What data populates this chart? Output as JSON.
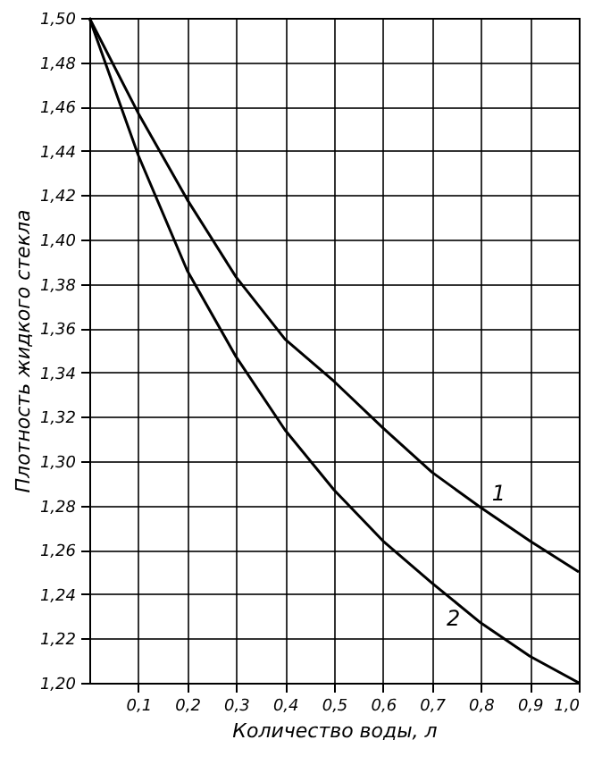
{
  "chart_data": {
    "type": "line",
    "xlabel": "Количество воды, л",
    "ylabel": "Плотность жидкого стекла",
    "x": [
      0,
      0.1,
      0.2,
      0.3,
      0.4,
      0.5,
      0.6,
      0.7,
      0.8,
      0.9,
      1.0
    ],
    "series": [
      {
        "name": "1",
        "color": "#000000",
        "values": [
          1.5,
          1.457,
          1.418,
          1.383,
          1.355,
          1.336,
          1.315,
          1.295,
          1.279,
          1.264,
          1.25
        ]
      },
      {
        "name": "2",
        "color": "#000000",
        "values": [
          1.5,
          1.438,
          1.386,
          1.347,
          1.314,
          1.287,
          1.264,
          1.245,
          1.227,
          1.212,
          1.2
        ]
      }
    ],
    "xlim": [
      0,
      1.0
    ],
    "xticks": [
      {
        "value": 0.1,
        "label": "0,1"
      },
      {
        "value": 0.2,
        "label": "0,2"
      },
      {
        "value": 0.3,
        "label": "0,3"
      },
      {
        "value": 0.4,
        "label": "0,4"
      },
      {
        "value": 0.5,
        "label": "0,5"
      },
      {
        "value": 0.6,
        "label": "0,6"
      },
      {
        "value": 0.7,
        "label": "0,7"
      },
      {
        "value": 0.8,
        "label": "0,8"
      },
      {
        "value": 0.9,
        "label": "0,9"
      },
      {
        "value": 1.0,
        "label": "1,0"
      }
    ],
    "ylim": [
      1.2,
      1.5
    ],
    "yticks": [
      {
        "value": 1.2,
        "label": "1,20"
      },
      {
        "value": 1.22,
        "label": "1,22"
      },
      {
        "value": 1.24,
        "label": "1,24"
      },
      {
        "value": 1.26,
        "label": "1,26"
      },
      {
        "value": 1.28,
        "label": "1,28"
      },
      {
        "value": 1.3,
        "label": "1,30"
      },
      {
        "value": 1.32,
        "label": "1,32"
      },
      {
        "value": 1.34,
        "label": "1,34"
      },
      {
        "value": 1.36,
        "label": "1,36"
      },
      {
        "value": 1.38,
        "label": "1,38"
      },
      {
        "value": 1.4,
        "label": "1,40"
      },
      {
        "value": 1.42,
        "label": "1,42"
      },
      {
        "value": 1.44,
        "label": "1,44"
      },
      {
        "value": 1.46,
        "label": "1,46"
      },
      {
        "value": 1.48,
        "label": "1,48"
      },
      {
        "value": 1.5,
        "label": "1,50"
      }
    ],
    "grid": true,
    "legend": false,
    "marker": "none",
    "line_style": "solid"
  }
}
